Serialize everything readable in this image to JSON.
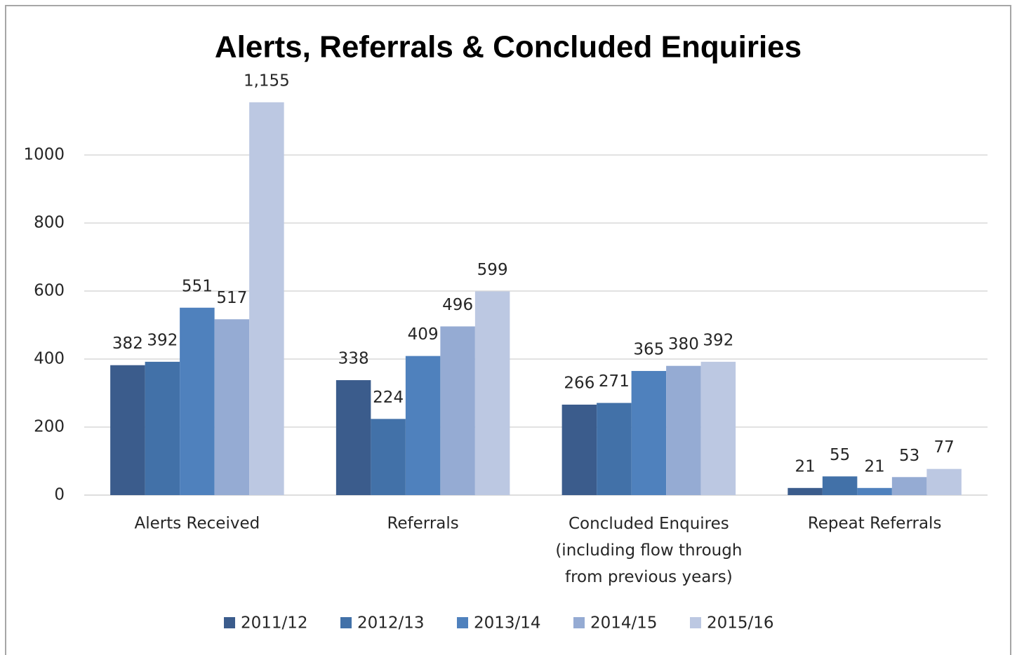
{
  "chart_data": {
    "type": "bar",
    "title": "Alerts, Referrals & Concluded Enquiries",
    "categories": [
      "Alerts Received",
      "Referrals",
      "Concluded Enquires\n(including flow through\nfrom previous years)",
      "Repeat Referrals"
    ],
    "series": [
      {
        "name": "2011/12",
        "color": "#3b5c8c",
        "values": [
          382,
          338,
          266,
          21
        ]
      },
      {
        "name": "2012/13",
        "color": "#4271a8",
        "values": [
          392,
          224,
          271,
          55
        ]
      },
      {
        "name": "2013/14",
        "color": "#4f81bd",
        "values": [
          551,
          409,
          365,
          21
        ]
      },
      {
        "name": "2014/15",
        "color": "#95abd3",
        "values": [
          517,
          496,
          380,
          53
        ]
      },
      {
        "name": "2015/16",
        "color": "#bcc8e2",
        "values": [
          1155,
          599,
          392,
          77
        ],
        "value_labels": [
          "1,155",
          "599",
          "392",
          "77"
        ]
      }
    ],
    "ylim": [
      0,
      1200
    ],
    "yticks": [
      0,
      200,
      400,
      600,
      800,
      1000
    ],
    "grid": true,
    "legend": "bottom"
  }
}
